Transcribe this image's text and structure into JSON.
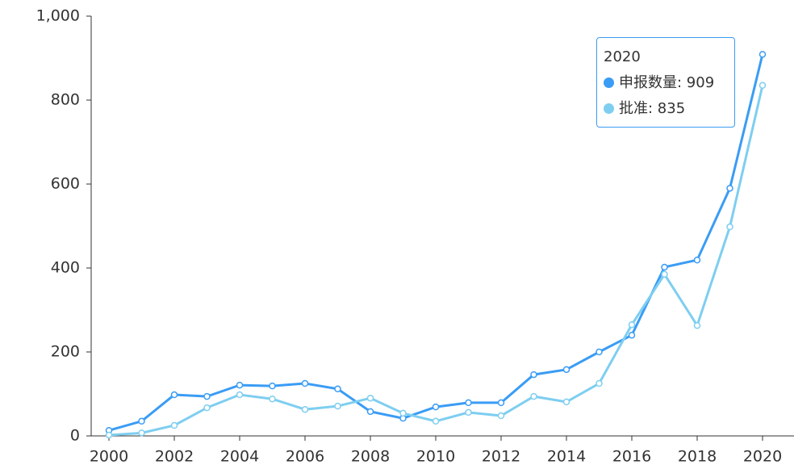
{
  "chart_data": {
    "type": "line",
    "x": [
      2000,
      2001,
      2002,
      2003,
      2004,
      2005,
      2006,
      2007,
      2008,
      2009,
      2010,
      2011,
      2012,
      2013,
      2014,
      2015,
      2016,
      2017,
      2018,
      2019,
      2020
    ],
    "series": [
      {
        "name": "申报数量",
        "color": "#3a9cf5",
        "values": [
          13,
          35,
          98,
          94,
          121,
          119,
          125,
          112,
          58,
          42,
          69,
          79,
          79,
          146,
          158,
          200,
          240,
          402,
          419,
          590,
          909
        ]
      },
      {
        "name": "批准",
        "color": "#7ecef0",
        "values": [
          2,
          7,
          25,
          67,
          98,
          88,
          63,
          71,
          90,
          54,
          35,
          56,
          48,
          94,
          81,
          125,
          265,
          385,
          263,
          498,
          835
        ]
      }
    ],
    "xlim": [
      2000,
      2020
    ],
    "xticks": [
      2000,
      2002,
      2004,
      2006,
      2008,
      2010,
      2012,
      2014,
      2016,
      2018,
      2020
    ],
    "ylim": [
      0,
      1000
    ],
    "yticks": [
      0,
      200,
      400,
      600,
      800,
      {
        "value": 1000,
        "label": "1,000"
      }
    ],
    "tooltip": {
      "title": "2020",
      "items": [
        "申报数量: 909",
        "批准: 835"
      ]
    }
  }
}
